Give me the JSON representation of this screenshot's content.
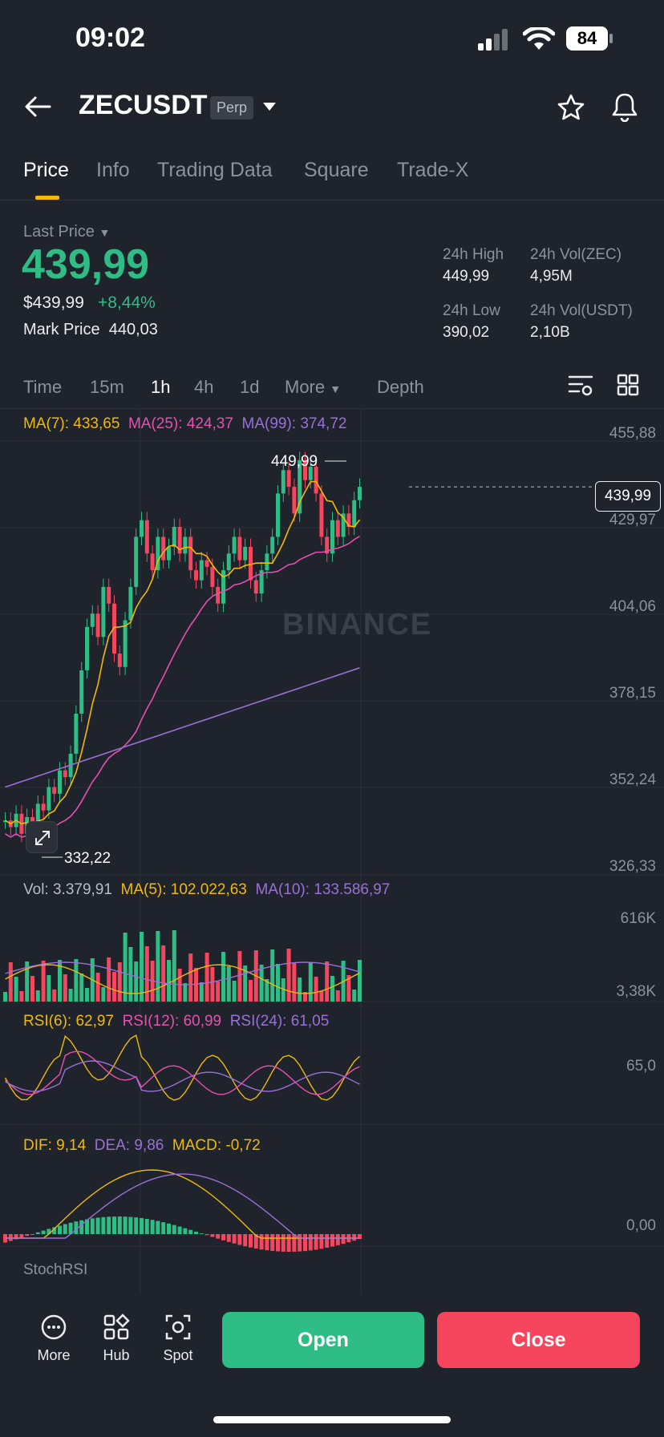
{
  "status": {
    "time": "09:02",
    "battery": "84"
  },
  "header": {
    "symbol": "ZECUSDT",
    "badge": "Perp"
  },
  "tabs": [
    "Price",
    "Info",
    "Trading Data",
    "Square",
    "Trade-X"
  ],
  "last_price": {
    "label": "Last Price",
    "value": "439,99",
    "usd": "$439,99",
    "change": "+8,44%",
    "mark_label": "Mark Price",
    "mark_value": "440,03"
  },
  "stats": {
    "high_label": "24h High",
    "high": "449,99",
    "vol_zec_label": "24h Vol(ZEC)",
    "vol_zec": "4,95M",
    "low_label": "24h Low",
    "low": "390,02",
    "vol_usdt_label": "24h Vol(USDT)",
    "vol_usdt": "2,10B"
  },
  "timeframes": [
    "Time",
    "15m",
    "1h",
    "4h",
    "1d",
    "More",
    "Depth"
  ],
  "ma": {
    "ma7": "MA(7): 433,65",
    "ma25": "MA(25): 424,37",
    "ma99": "MA(99): 374,72"
  },
  "price_axis": [
    "455,88",
    "429,97",
    "404,06",
    "378,15",
    "352,24",
    "326,33"
  ],
  "current_price_tag": "439,99",
  "high_marker": "449,99",
  "low_marker": "332,22",
  "watermark": "BINANCE",
  "volume": {
    "vol": "Vol: 3.379,91",
    "ma5": "MA(5): 102.022,63",
    "ma10": "MA(10): 133.586,97",
    "axis_top": "616K",
    "axis_bottom": "3,38K"
  },
  "rsi": {
    "rsi6": "RSI(6): 62,97",
    "rsi12": "RSI(12): 60,99",
    "rsi24": "RSI(24): 61,05",
    "axis": "65,0"
  },
  "macd": {
    "dif": "DIF: 9,14",
    "dea": "DEA: 9,86",
    "macd": "MACD: -0,72",
    "axis": "0,00"
  },
  "stoch_label": "StochRSI",
  "bottom_nav": [
    "More",
    "Hub",
    "Spot"
  ],
  "actions": {
    "open": "Open",
    "close": "Close"
  },
  "colors": {
    "up": "#2ebd85",
    "down": "#f6465d",
    "accent": "#f0b90b",
    "ma7": "#f0b90b",
    "ma25": "#e84fb0",
    "ma99": "#9b6fd9"
  }
}
